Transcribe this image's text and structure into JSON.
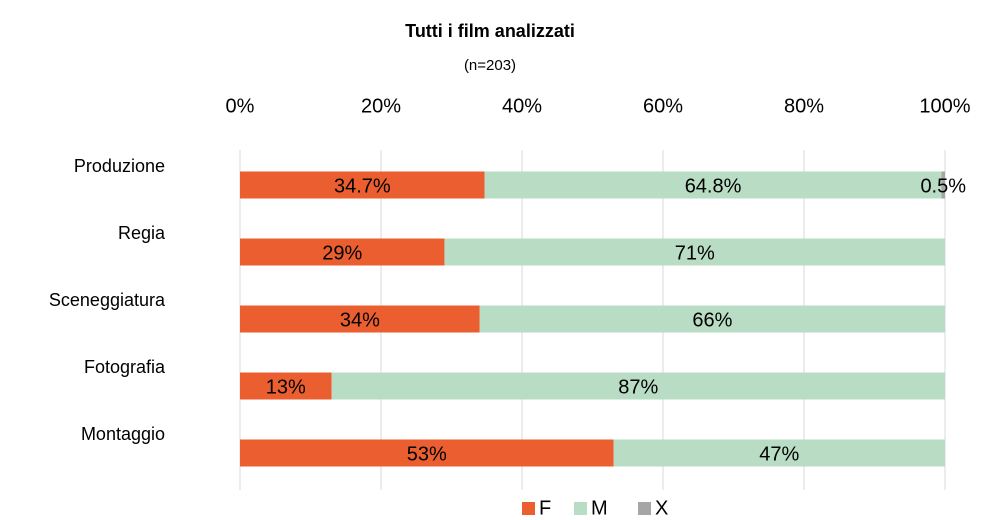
{
  "chart_data": {
    "type": "stacked-bar-horizontal",
    "title": "Tutti i film analizzati",
    "subtitle": "(n=203)",
    "categories": [
      "Produzione",
      "Regia",
      "Sceneggiatura",
      "Fotografia",
      "Montaggio"
    ],
    "series": [
      {
        "name": "F",
        "color": "#eb5e30",
        "values": [
          34.7,
          29,
          34,
          13,
          53
        ],
        "value_labels": [
          "34.7%",
          "29%",
          "34%",
          "13%",
          "53%"
        ]
      },
      {
        "name": "M",
        "color": "#b9dcc4",
        "values": [
          64.8,
          71,
          66,
          87,
          47
        ],
        "value_labels": [
          "64.8%",
          "71%",
          "66%",
          "87%",
          "47%"
        ]
      },
      {
        "name": "X",
        "color": "#a6a6a6",
        "values": [
          0.5,
          null,
          null,
          null,
          null
        ],
        "value_labels": [
          "0.5%",
          null,
          null,
          null,
          null
        ]
      }
    ],
    "xlim": [
      0,
      100
    ],
    "xticks": [
      {
        "value": 0,
        "label": "0%"
      },
      {
        "value": 20,
        "label": "20%"
      },
      {
        "value": 40,
        "label": "40%"
      },
      {
        "value": 60,
        "label": "60%"
      },
      {
        "value": 80,
        "label": "80%"
      },
      {
        "value": 100,
        "label": "100%"
      }
    ],
    "grid": true,
    "legend": "bottom"
  }
}
